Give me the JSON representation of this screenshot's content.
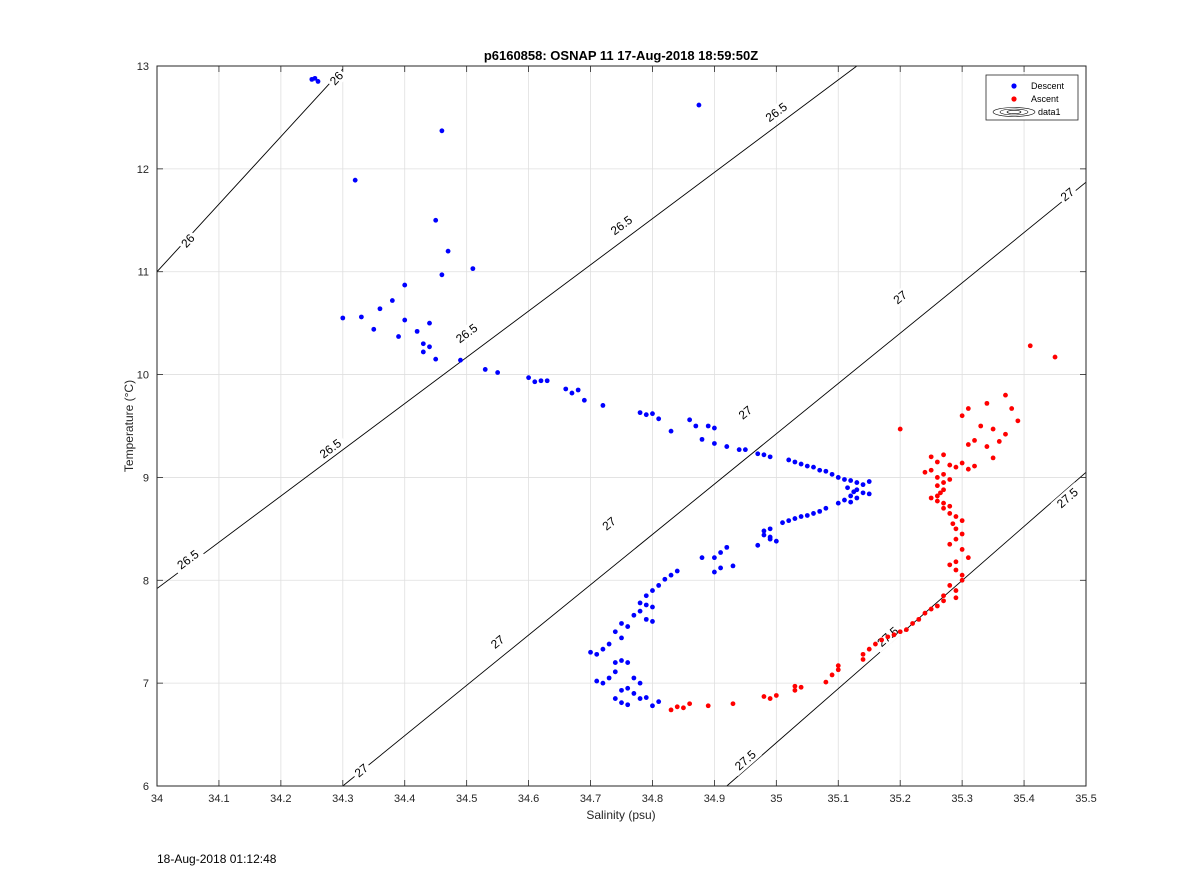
{
  "chart_data": {
    "type": "scatter",
    "title": "p6160858: OSNAP 11 17-Aug-2018 18:59:50Z",
    "xlabel": "Salinity (psu)",
    "ylabel": "Temperature (°C)",
    "xlim": [
      34,
      35.5
    ],
    "ylim": [
      6,
      13
    ],
    "x_ticks": [
      "34",
      "34.1",
      "34.2",
      "34.3",
      "34.4",
      "34.5",
      "34.6",
      "34.7",
      "34.8",
      "34.9",
      "35",
      "35.1",
      "35.2",
      "35.3",
      "35.4",
      "35.5"
    ],
    "y_ticks": [
      "6",
      "7",
      "8",
      "9",
      "10",
      "11",
      "12",
      "13"
    ],
    "grid": true,
    "legend": {
      "placement": "top-right",
      "entries": [
        "Descent",
        "Ascent",
        "data1"
      ]
    },
    "contours": [
      {
        "level": "26",
        "line": [
          [
            34.0,
            11.0
          ],
          [
            34.3,
            12.97
          ]
        ],
        "labels": [
          {
            "s": 34.05,
            "t": 11.3
          },
          {
            "s": 34.29,
            "t": 12.88
          }
        ]
      },
      {
        "level": "26.5",
        "line": [
          [
            34.0,
            7.92
          ],
          [
            35.13,
            13.0
          ]
        ],
        "labels": [
          {
            "s": 34.05,
            "t": 8.2
          },
          {
            "s": 34.28,
            "t": 9.28
          },
          {
            "s": 34.5,
            "t": 10.4
          },
          {
            "s": 34.75,
            "t": 11.45
          },
          {
            "s": 35.0,
            "t": 12.55
          }
        ]
      },
      {
        "level": "27",
        "line": [
          [
            34.3,
            6.0
          ],
          [
            35.5,
            11.87
          ]
        ],
        "labels": [
          {
            "s": 34.33,
            "t": 6.15
          },
          {
            "s": 34.55,
            "t": 7.4
          },
          {
            "s": 34.73,
            "t": 8.55
          },
          {
            "s": 34.95,
            "t": 9.63
          },
          {
            "s": 35.2,
            "t": 10.75
          },
          {
            "s": 35.47,
            "t": 11.75
          }
        ]
      },
      {
        "level": "27.5",
        "line": [
          [
            34.92,
            6.0
          ],
          [
            35.5,
            9.05
          ]
        ],
        "labels": [
          {
            "s": 34.95,
            "t": 6.25
          },
          {
            "s": 35.18,
            "t": 7.45
          },
          {
            "s": 35.47,
            "t": 8.8
          }
        ]
      }
    ],
    "series": [
      {
        "name": "Descent",
        "color": "#0000ff",
        "points": [
          [
            34.25,
            12.87
          ],
          [
            34.26,
            12.85
          ],
          [
            34.255,
            12.88
          ],
          [
            34.875,
            12.62
          ],
          [
            34.46,
            12.37
          ],
          [
            34.32,
            11.89
          ],
          [
            34.45,
            11.5
          ],
          [
            34.47,
            11.2
          ],
          [
            34.46,
            10.97
          ],
          [
            34.51,
            11.03
          ],
          [
            34.4,
            10.87
          ],
          [
            34.3,
            10.55
          ],
          [
            34.33,
            10.56
          ],
          [
            34.35,
            10.44
          ],
          [
            34.36,
            10.64
          ],
          [
            34.38,
            10.72
          ],
          [
            34.39,
            10.37
          ],
          [
            34.4,
            10.53
          ],
          [
            34.42,
            10.42
          ],
          [
            34.43,
            10.3
          ],
          [
            34.44,
            10.27
          ],
          [
            34.43,
            10.22
          ],
          [
            34.44,
            10.5
          ],
          [
            34.45,
            10.15
          ],
          [
            34.49,
            10.14
          ],
          [
            34.53,
            10.05
          ],
          [
            34.55,
            10.02
          ],
          [
            34.6,
            9.97
          ],
          [
            34.61,
            9.93
          ],
          [
            34.62,
            9.94
          ],
          [
            34.63,
            9.94
          ],
          [
            34.66,
            9.86
          ],
          [
            34.67,
            9.82
          ],
          [
            34.68,
            9.85
          ],
          [
            34.69,
            9.75
          ],
          [
            34.72,
            9.7
          ],
          [
            34.78,
            9.63
          ],
          [
            34.79,
            9.61
          ],
          [
            34.8,
            9.62
          ],
          [
            34.81,
            9.57
          ],
          [
            34.83,
            9.45
          ],
          [
            34.86,
            9.56
          ],
          [
            34.87,
            9.5
          ],
          [
            34.88,
            9.37
          ],
          [
            34.89,
            9.5
          ],
          [
            34.9,
            9.48
          ],
          [
            34.9,
            9.33
          ],
          [
            34.92,
            9.3
          ],
          [
            34.94,
            9.27
          ],
          [
            34.95,
            9.27
          ],
          [
            34.97,
            9.23
          ],
          [
            34.98,
            9.22
          ],
          [
            34.99,
            9.2
          ],
          [
            35.02,
            9.17
          ],
          [
            35.03,
            9.15
          ],
          [
            35.04,
            9.13
          ],
          [
            35.05,
            9.11
          ],
          [
            35.06,
            9.1
          ],
          [
            35.07,
            9.07
          ],
          [
            35.08,
            9.06
          ],
          [
            35.09,
            9.03
          ],
          [
            35.1,
            9.0
          ],
          [
            35.11,
            8.98
          ],
          [
            35.12,
            8.97
          ],
          [
            35.13,
            8.95
          ],
          [
            35.14,
            8.93
          ],
          [
            35.15,
            8.96
          ],
          [
            35.115,
            8.9
          ],
          [
            35.125,
            8.86
          ],
          [
            35.13,
            8.88
          ],
          [
            35.14,
            8.85
          ],
          [
            35.15,
            8.84
          ],
          [
            35.12,
            8.82
          ],
          [
            35.13,
            8.8
          ],
          [
            35.11,
            8.78
          ],
          [
            35.12,
            8.76
          ],
          [
            35.1,
            8.75
          ],
          [
            35.08,
            8.7
          ],
          [
            35.07,
            8.67
          ],
          [
            35.06,
            8.65
          ],
          [
            35.05,
            8.63
          ],
          [
            35.04,
            8.62
          ],
          [
            35.03,
            8.6
          ],
          [
            35.02,
            8.58
          ],
          [
            35.01,
            8.56
          ],
          [
            34.99,
            8.5
          ],
          [
            34.98,
            8.48
          ],
          [
            34.98,
            8.44
          ],
          [
            34.99,
            8.42
          ],
          [
            35.0,
            8.38
          ],
          [
            34.99,
            8.4
          ],
          [
            34.97,
            8.34
          ],
          [
            34.92,
            8.32
          ],
          [
            34.91,
            8.27
          ],
          [
            34.9,
            8.22
          ],
          [
            34.88,
            8.22
          ],
          [
            34.93,
            8.14
          ],
          [
            34.91,
            8.12
          ],
          [
            34.9,
            8.08
          ],
          [
            34.84,
            8.09
          ],
          [
            34.83,
            8.05
          ],
          [
            34.82,
            8.01
          ],
          [
            34.81,
            7.95
          ],
          [
            34.8,
            7.9
          ],
          [
            34.79,
            7.85
          ],
          [
            34.78,
            7.78
          ],
          [
            34.79,
            7.76
          ],
          [
            34.8,
            7.74
          ],
          [
            34.78,
            7.7
          ],
          [
            34.77,
            7.66
          ],
          [
            34.79,
            7.62
          ],
          [
            34.8,
            7.6
          ],
          [
            34.75,
            7.58
          ],
          [
            34.76,
            7.55
          ],
          [
            34.74,
            7.5
          ],
          [
            34.75,
            7.44
          ],
          [
            34.73,
            7.38
          ],
          [
            34.72,
            7.33
          ],
          [
            34.71,
            7.28
          ],
          [
            34.7,
            7.3
          ],
          [
            34.74,
            7.2
          ],
          [
            34.75,
            7.22
          ],
          [
            34.76,
            7.2
          ],
          [
            34.74,
            7.11
          ],
          [
            34.73,
            7.05
          ],
          [
            34.72,
            7.0
          ],
          [
            34.71,
            7.02
          ],
          [
            34.77,
            7.05
          ],
          [
            34.78,
            7.0
          ],
          [
            34.76,
            6.95
          ],
          [
            34.75,
            6.93
          ],
          [
            34.77,
            6.9
          ],
          [
            34.78,
            6.85
          ],
          [
            34.79,
            6.86
          ],
          [
            34.74,
            6.85
          ],
          [
            34.75,
            6.81
          ],
          [
            34.76,
            6.79
          ],
          [
            34.8,
            6.78
          ],
          [
            34.81,
            6.82
          ]
        ]
      },
      {
        "name": "Ascent",
        "color": "#ff0000",
        "points": [
          [
            35.41,
            10.28
          ],
          [
            35.45,
            10.17
          ],
          [
            35.37,
            9.8
          ],
          [
            35.38,
            9.67
          ],
          [
            35.34,
            9.72
          ],
          [
            35.31,
            9.67
          ],
          [
            35.3,
            9.6
          ],
          [
            35.33,
            9.5
          ],
          [
            35.35,
            9.47
          ],
          [
            35.37,
            9.42
          ],
          [
            35.39,
            9.55
          ],
          [
            35.32,
            9.36
          ],
          [
            35.31,
            9.32
          ],
          [
            35.34,
            9.3
          ],
          [
            35.36,
            9.35
          ],
          [
            35.2,
            9.47
          ],
          [
            35.25,
            9.2
          ],
          [
            35.27,
            9.22
          ],
          [
            35.26,
            9.15
          ],
          [
            35.28,
            9.12
          ],
          [
            35.29,
            9.1
          ],
          [
            35.3,
            9.14
          ],
          [
            35.31,
            9.08
          ],
          [
            35.32,
            9.11
          ],
          [
            35.35,
            9.19
          ],
          [
            35.24,
            9.05
          ],
          [
            35.25,
            9.07
          ],
          [
            35.27,
            9.03
          ],
          [
            35.26,
            9.0
          ],
          [
            35.28,
            8.98
          ],
          [
            35.27,
            8.95
          ],
          [
            35.26,
            8.92
          ],
          [
            35.27,
            8.88
          ],
          [
            35.265,
            8.85
          ],
          [
            35.26,
            8.82
          ],
          [
            35.25,
            8.8
          ],
          [
            35.26,
            8.77
          ],
          [
            35.27,
            8.75
          ],
          [
            35.28,
            8.72
          ],
          [
            35.27,
            8.7
          ],
          [
            35.28,
            8.65
          ],
          [
            35.29,
            8.62
          ],
          [
            35.3,
            8.58
          ],
          [
            35.285,
            8.55
          ],
          [
            35.29,
            8.5
          ],
          [
            35.3,
            8.45
          ],
          [
            35.29,
            8.4
          ],
          [
            35.28,
            8.35
          ],
          [
            35.3,
            8.3
          ],
          [
            35.31,
            8.22
          ],
          [
            35.29,
            8.18
          ],
          [
            35.28,
            8.15
          ],
          [
            35.29,
            8.1
          ],
          [
            35.3,
            8.05
          ],
          [
            35.3,
            8.0
          ],
          [
            35.28,
            7.95
          ],
          [
            35.29,
            7.9
          ],
          [
            35.27,
            7.85
          ],
          [
            35.29,
            7.83
          ],
          [
            35.27,
            7.8
          ],
          [
            35.26,
            7.75
          ],
          [
            35.25,
            7.72
          ],
          [
            35.24,
            7.68
          ],
          [
            35.23,
            7.62
          ],
          [
            35.22,
            7.58
          ],
          [
            35.21,
            7.52
          ],
          [
            35.2,
            7.5
          ],
          [
            35.19,
            7.47
          ],
          [
            35.18,
            7.45
          ],
          [
            35.17,
            7.42
          ],
          [
            35.16,
            7.38
          ],
          [
            35.15,
            7.33
          ],
          [
            35.14,
            7.28
          ],
          [
            35.14,
            7.23
          ],
          [
            35.1,
            7.13
          ],
          [
            35.1,
            7.17
          ],
          [
            35.09,
            7.08
          ],
          [
            35.08,
            7.01
          ],
          [
            35.04,
            6.96
          ],
          [
            35.03,
            6.97
          ],
          [
            35.03,
            6.93
          ],
          [
            35.0,
            6.88
          ],
          [
            34.99,
            6.85
          ],
          [
            34.98,
            6.87
          ],
          [
            34.93,
            6.8
          ],
          [
            34.89,
            6.78
          ],
          [
            34.86,
            6.8
          ],
          [
            34.85,
            6.76
          ],
          [
            34.84,
            6.77
          ],
          [
            34.83,
            6.74
          ]
        ]
      }
    ]
  },
  "footer": {
    "timestamp": "18-Aug-2018 01:12:48"
  }
}
